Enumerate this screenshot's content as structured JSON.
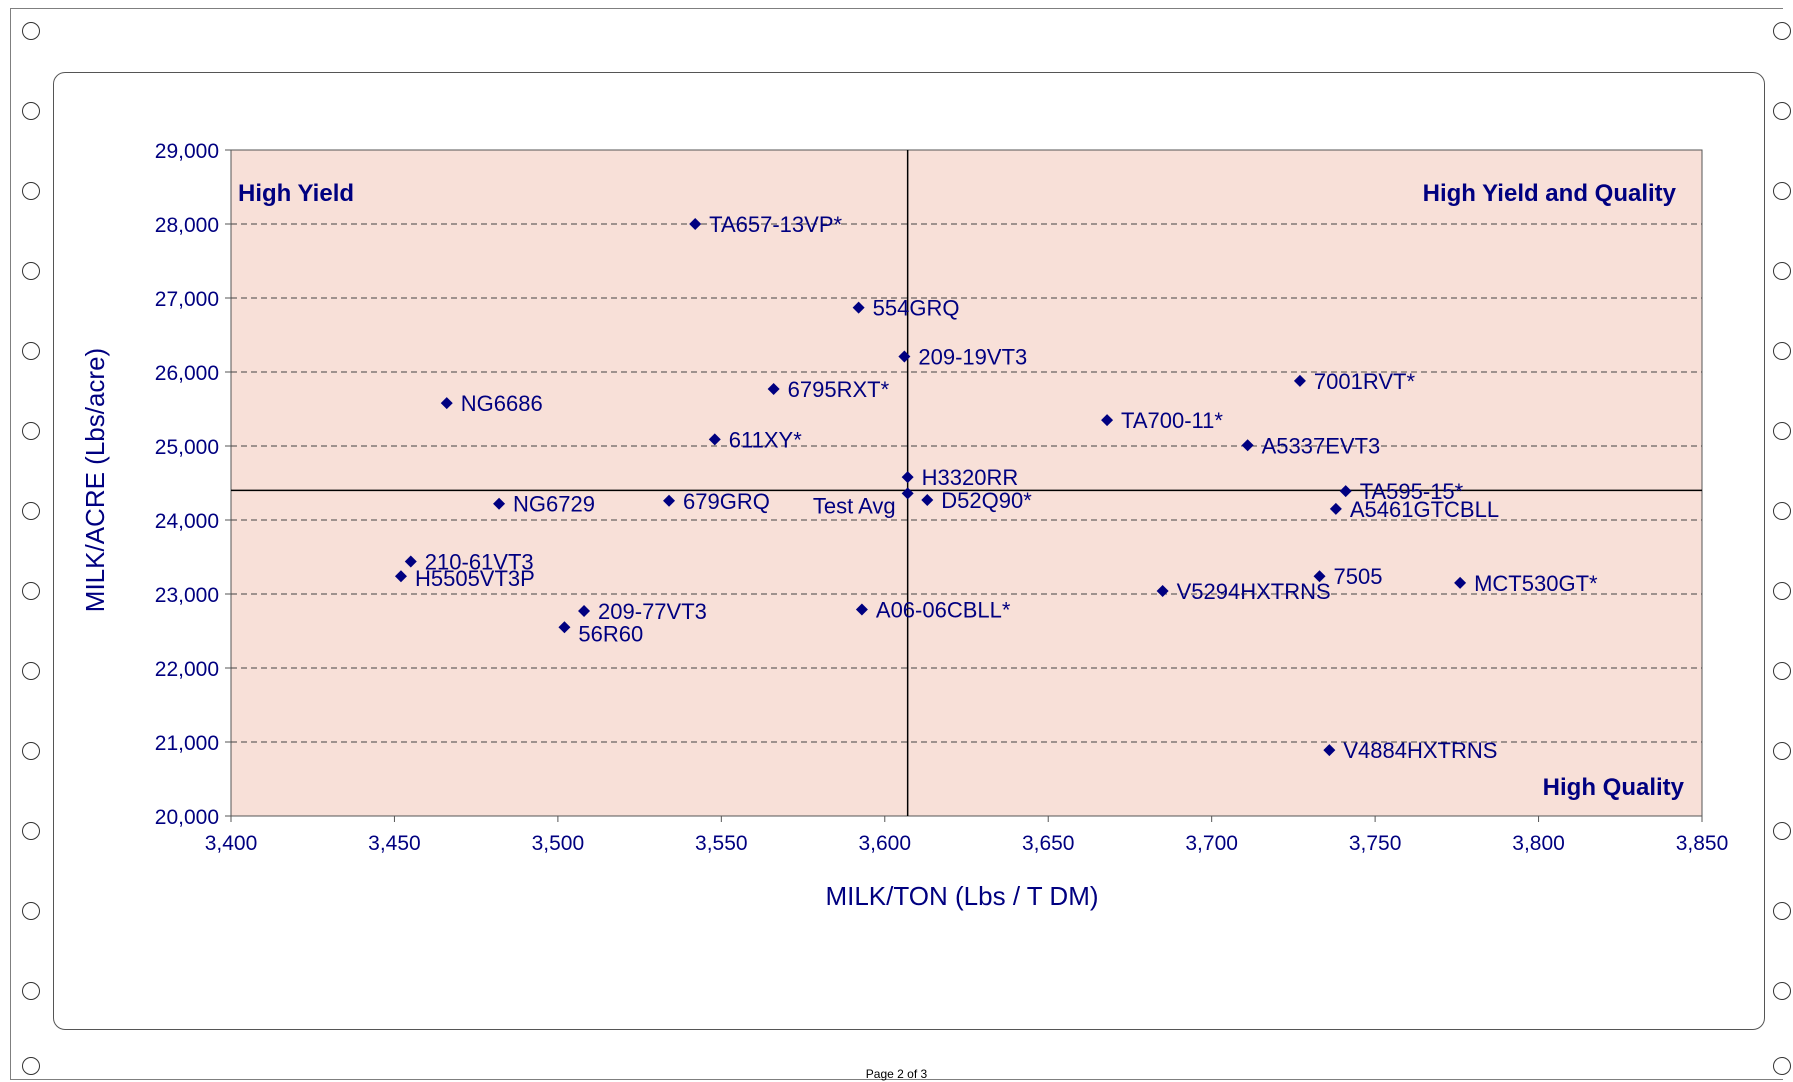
{
  "page": {
    "footer": "Page 2 of 3"
  },
  "chart_data": {
    "type": "scatter",
    "xlabel": "MILK/TON (Lbs / T DM)",
    "ylabel": "MILK/ACRE (Lbs/acre)",
    "xlim": [
      3400,
      3850
    ],
    "ylim": [
      20000,
      29000
    ],
    "x_ticks": [
      "3,400",
      "3,450",
      "3,500",
      "3,550",
      "3,600",
      "3,650",
      "3,700",
      "3,750",
      "3,800",
      "3,850"
    ],
    "y_ticks": [
      "20,000",
      "21,000",
      "22,000",
      "23,000",
      "24,000",
      "25,000",
      "26,000",
      "27,000",
      "28,000",
      "29,000"
    ],
    "grid": "horizontal dashed",
    "reference_lines": {
      "x": 3607,
      "y": 24400
    },
    "quadrant_labels": {
      "top_left": "High Yield",
      "top_right": "High Yield and Quality",
      "bottom_right": "High Quality"
    },
    "colors": {
      "marker": "#000080",
      "text": "#000080",
      "plot_bg": "#f8e0d8"
    },
    "points": [
      {
        "label": "TA657-13VP*",
        "x": 3542,
        "y": 28000
      },
      {
        "label": "554GRQ",
        "x": 3592,
        "y": 26870
      },
      {
        "label": "209-19VT3",
        "x": 3606,
        "y": 26210
      },
      {
        "label": "6795RXT*",
        "x": 3566,
        "y": 25770
      },
      {
        "label": "NG6686",
        "x": 3466,
        "y": 25580
      },
      {
        "label": "7001RVT*",
        "x": 3727,
        "y": 25880
      },
      {
        "label": "TA700-11*",
        "x": 3668,
        "y": 25350
      },
      {
        "label": "611XY*",
        "x": 3548,
        "y": 25090
      },
      {
        "label": "A5337EVT3",
        "x": 3711,
        "y": 25010
      },
      {
        "label": "H3320RR",
        "x": 3607,
        "y": 24580
      },
      {
        "label": "TA595-15*",
        "x": 3741,
        "y": 24390
      },
      {
        "label": "Test Avg",
        "x": 3607,
        "y": 24360
      },
      {
        "label": "D52Q90*",
        "x": 3613,
        "y": 24270
      },
      {
        "label": "679GRQ",
        "x": 3534,
        "y": 24260
      },
      {
        "label": "NG6729",
        "x": 3482,
        "y": 24220
      },
      {
        "label": "A5461GTCBLL",
        "x": 3738,
        "y": 24150
      },
      {
        "label": "210-61VT3",
        "x": 3455,
        "y": 23440
      },
      {
        "label": "H5505VT3P",
        "x": 3452,
        "y": 23240
      },
      {
        "label": "7505",
        "x": 3733,
        "y": 23240
      },
      {
        "label": "MCT530GT*",
        "x": 3776,
        "y": 23150
      },
      {
        "label": "V5294HXTRNS",
        "x": 3685,
        "y": 23040
      },
      {
        "label": "209-77VT3",
        "x": 3508,
        "y": 22770
      },
      {
        "label": "A06-06CBLL*",
        "x": 3593,
        "y": 22790
      },
      {
        "label": "56R60",
        "x": 3502,
        "y": 22550
      },
      {
        "label": "V4884HXTRNS",
        "x": 3736,
        "y": 20890
      }
    ]
  }
}
